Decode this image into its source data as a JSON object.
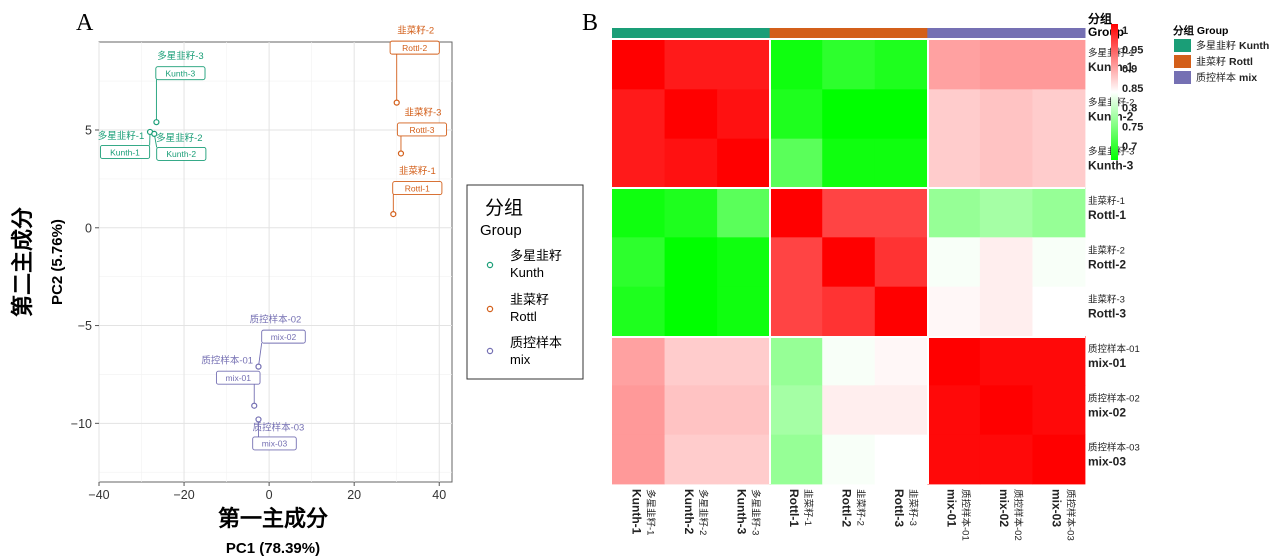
{
  "panels": {
    "a": "A",
    "b": "B"
  },
  "colors": {
    "kunth": "#1a9e77",
    "rottl": "#d35f1a",
    "mix": "#7570b3",
    "heat_high": "#ff0000",
    "heat_mid": "#ffffff",
    "heat_low": "#00ff00"
  },
  "chart_data": [
    {
      "type": "scatter",
      "xlabel": "第一主成分",
      "xlabel_sub": "PC1 (78.39%)",
      "ylabel": "第二主成分",
      "ylabel_sub": "PC2 (5.76%)",
      "xlim": [
        -40,
        43
      ],
      "ylim": [
        -13,
        9.5
      ],
      "xticks": [
        -40,
        -20,
        0,
        20,
        40
      ],
      "yticks": [
        -10,
        -5,
        0,
        5
      ],
      "grid": true,
      "legend": {
        "position": "right",
        "title": "分组",
        "title_sub": "Group",
        "entries": [
          {
            "group": "kunth",
            "line1": "多星韭籽",
            "line2": "Kunth"
          },
          {
            "group": "rottl",
            "line1": "韭菜籽",
            "line2": "Rottl"
          },
          {
            "group": "mix",
            "line1": "质控样本",
            "line2": "mix"
          }
        ]
      },
      "points": [
        {
          "group": "kunth",
          "x": -26.5,
          "y": 5.4,
          "label_top": "多星韭籽-3",
          "label_box": "Kunth-3"
        },
        {
          "group": "kunth",
          "x": -28.0,
          "y": 4.9,
          "label_top": "多星韭籽-1",
          "label_box": "Kunth-1"
        },
        {
          "group": "kunth",
          "x": -27.0,
          "y": 4.8,
          "label_top": "多星韭籽-2",
          "label_box": "Kunth-2"
        },
        {
          "group": "rottl",
          "x": 30.0,
          "y": 6.4,
          "label_top": "韭菜籽-2",
          "label_box": "Rottl-2"
        },
        {
          "group": "rottl",
          "x": 31.0,
          "y": 3.8,
          "label_top": "韭菜籽-3",
          "label_box": "Rottl-3"
        },
        {
          "group": "rottl",
          "x": 29.2,
          "y": 0.7,
          "label_top": "韭菜籽-1",
          "label_box": "Rottl-1"
        },
        {
          "group": "mix",
          "x": -2.5,
          "y": -7.1,
          "label_top": "质控样本-02",
          "label_box": "mix-02"
        },
        {
          "group": "mix",
          "x": -3.5,
          "y": -9.1,
          "label_top": "质控样本-01",
          "label_box": "mix-01"
        },
        {
          "group": "mix",
          "x": -2.5,
          "y": -9.8,
          "label_top": "质控样本-03",
          "label_box": "mix-03"
        }
      ]
    },
    {
      "type": "heatmap",
      "samples": [
        {
          "group": "kunth",
          "line1": "多星韭籽-1",
          "line2": "Kunth-1"
        },
        {
          "group": "kunth",
          "line1": "多星韭籽-2",
          "line2": "Kunth-2"
        },
        {
          "group": "kunth",
          "line1": "多星韭籽-3",
          "line2": "Kunth-3"
        },
        {
          "group": "rottl",
          "line1": "韭菜籽-1",
          "line2": "Rottl-1"
        },
        {
          "group": "rottl",
          "line1": "韭菜籽-2",
          "line2": "Rottl-2"
        },
        {
          "group": "rottl",
          "line1": "韭菜籽-3",
          "line2": "Rottl-3"
        },
        {
          "group": "mix",
          "line1": "质控样本-01",
          "line2": "mix-01"
        },
        {
          "group": "mix",
          "line1": "质控样本-02",
          "line2": "mix-02"
        },
        {
          "group": "mix",
          "line1": "质控样本-03",
          "line2": "mix-03"
        }
      ],
      "values": [
        [
          1.0,
          0.985,
          0.985,
          0.69,
          0.71,
          0.7,
          0.905,
          0.91,
          0.91
        ],
        [
          0.985,
          1.0,
          0.99,
          0.7,
          0.68,
          0.68,
          0.88,
          0.885,
          0.88
        ],
        [
          0.985,
          0.99,
          1.0,
          0.74,
          0.69,
          0.69,
          0.88,
          0.885,
          0.88
        ],
        [
          0.69,
          0.7,
          0.74,
          1.0,
          0.96,
          0.96,
          0.78,
          0.79,
          0.78
        ],
        [
          0.71,
          0.68,
          0.69,
          0.96,
          1.0,
          0.97,
          0.845,
          0.86,
          0.845
        ],
        [
          0.7,
          0.68,
          0.69,
          0.96,
          0.97,
          1.0,
          0.855,
          0.86,
          0.85
        ],
        [
          0.905,
          0.88,
          0.88,
          0.78,
          0.845,
          0.855,
          1.0,
          0.995,
          0.995
        ],
        [
          0.91,
          0.885,
          0.885,
          0.79,
          0.86,
          0.86,
          0.995,
          1.0,
          0.995
        ],
        [
          0.91,
          0.88,
          0.88,
          0.78,
          0.845,
          0.85,
          0.995,
          0.995,
          1.0
        ]
      ],
      "scale": {
        "min": 0.68,
        "mid": 0.85,
        "max": 1.0
      },
      "colorbar_ticks": [
        1,
        0.95,
        0.9,
        0.85,
        0.8,
        0.75,
        0.7
      ],
      "annotation_title": "分组",
      "annotation_title_sub": "Group",
      "legend_title": "分组 Group",
      "legend_entries": [
        {
          "group": "kunth",
          "label_cn": "多星韭籽",
          "label_en": "Kunth"
        },
        {
          "group": "rottl",
          "label_cn": "韭菜籽",
          "label_en": "Rottl"
        },
        {
          "group": "mix",
          "label_cn": "质控样本",
          "label_en": "mix"
        }
      ]
    }
  ]
}
